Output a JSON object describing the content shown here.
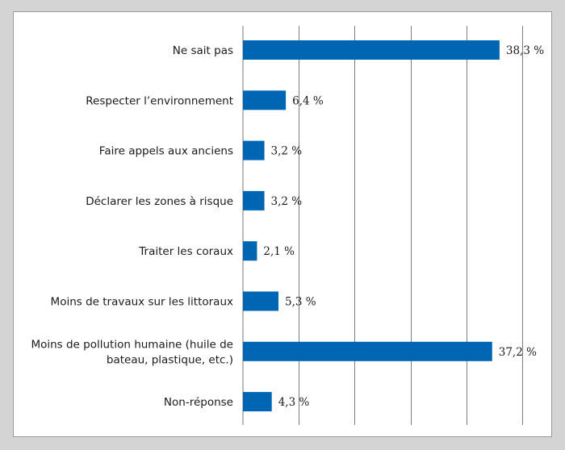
{
  "chart_data": {
    "type": "bar",
    "orientation": "horizontal",
    "categories": [
      [
        "Ne sait pas"
      ],
      [
        "Respecter l’environnement"
      ],
      [
        "Faire appels aux anciens"
      ],
      [
        "Déclarer les zones à risque"
      ],
      [
        "Traiter les coraux"
      ],
      [
        "Moins de travaux sur les littoraux"
      ],
      [
        "Moins de pollution humaine (huile de",
        "bateau, plastique, etc.)"
      ],
      [
        "Non-réponse"
      ]
    ],
    "values": [
      38.3,
      6.4,
      3.2,
      3.2,
      2.1,
      5.3,
      37.2,
      4.3
    ],
    "value_labels": [
      "38,3 %",
      "6,4 %",
      "3,2 %",
      "3,2 %",
      "2,1 %",
      "5,3 %",
      "37,2 %",
      "4,3 %"
    ],
    "xlim": [
      0,
      40
    ],
    "x_gridlines": [
      8.33,
      16.67,
      25,
      33.33,
      41.67
    ],
    "grid": true,
    "bar_color": "#0066b3",
    "grid_color": "#7a7a7a"
  }
}
